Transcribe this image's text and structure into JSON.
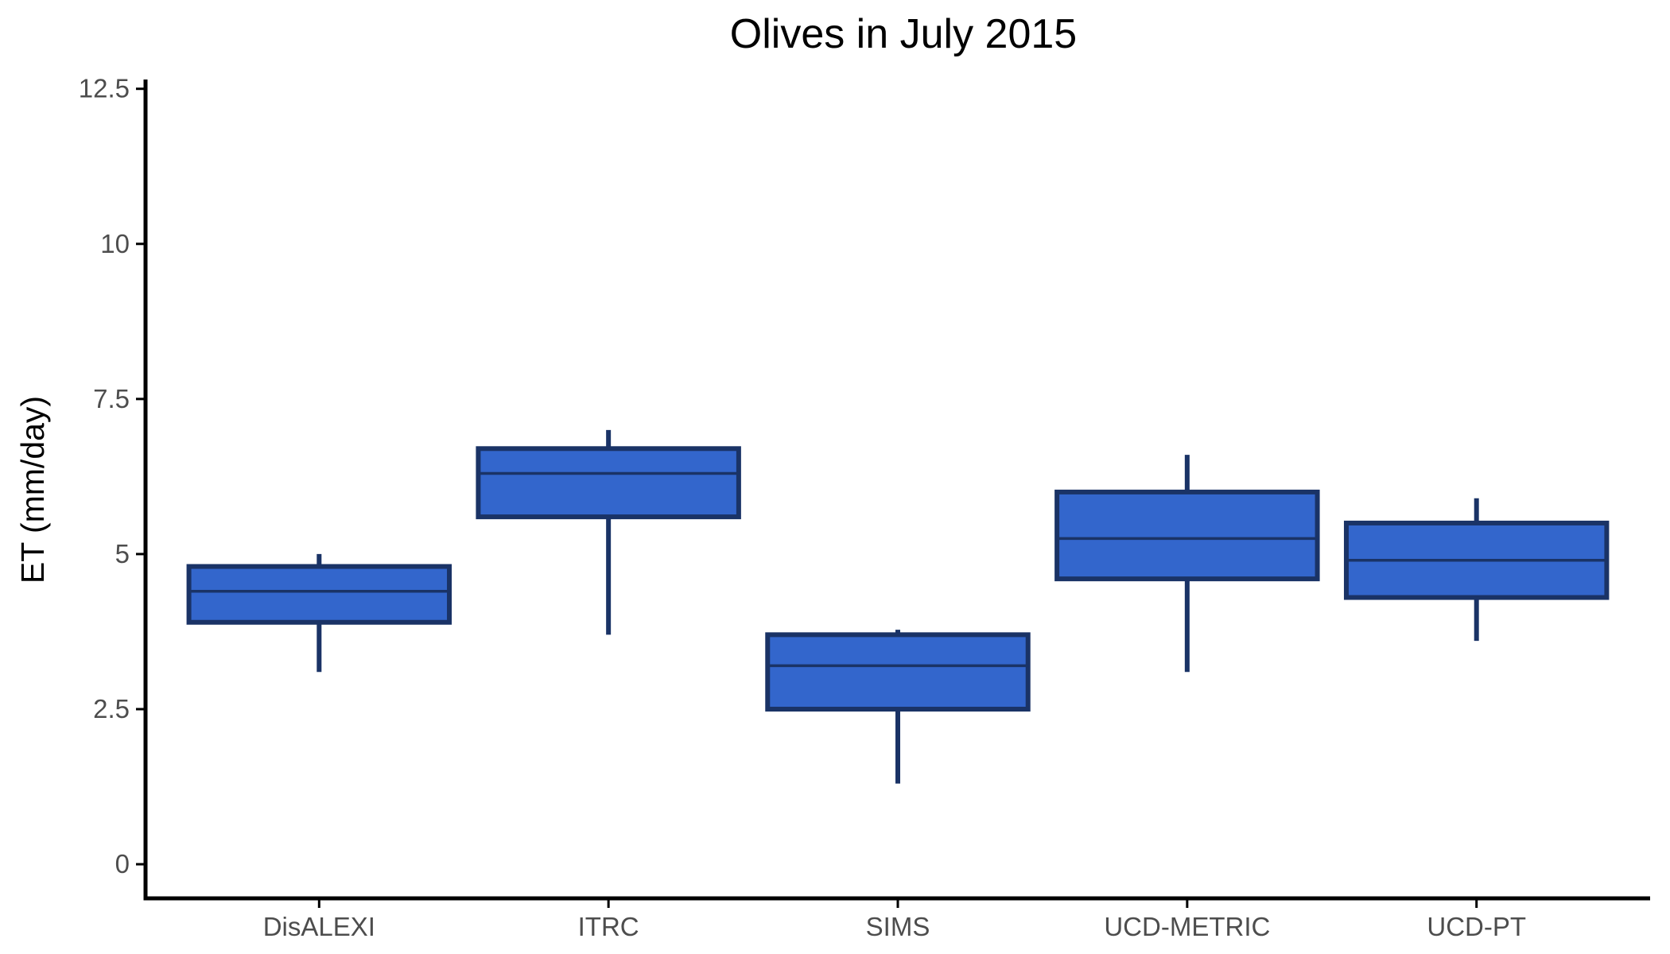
{
  "chart_data": {
    "type": "boxplot",
    "title": "Olives in July 2015",
    "xlabel": "",
    "ylabel": "ET (mm/day)",
    "ylim": [
      -0.55,
      12.65
    ],
    "yticks": [
      0,
      2.5,
      5,
      7.5,
      10,
      12.5
    ],
    "ytick_labels": [
      "0",
      "2.5",
      "5",
      "7.5",
      "10",
      "12.5"
    ],
    "categories": [
      "DisALEXI",
      "ITRC",
      "SIMS",
      "UCD-METRIC",
      "UCD-PT"
    ],
    "boxes": [
      {
        "category": "DisALEXI",
        "whisker_low": 3.1,
        "q1": 3.9,
        "median": 4.4,
        "q3": 4.8,
        "whisker_high": 5.0
      },
      {
        "category": "ITRC",
        "whisker_low": 3.7,
        "q1": 5.6,
        "median": 6.3,
        "q3": 6.7,
        "whisker_high": 7.0
      },
      {
        "category": "SIMS",
        "whisker_low": 1.3,
        "q1": 2.5,
        "median": 3.2,
        "q3": 3.7,
        "whisker_high": 3.78
      },
      {
        "category": "UCD-METRIC",
        "whisker_low": 3.1,
        "q1": 4.6,
        "median": 5.25,
        "q3": 6.0,
        "whisker_high": 6.6
      },
      {
        "category": "UCD-PT",
        "whisker_low": 3.6,
        "q1": 4.3,
        "median": 4.9,
        "q3": 5.5,
        "whisker_high": 5.9
      }
    ],
    "grid": false,
    "legend": "none",
    "colors": {
      "box_fill": "#3366cc",
      "box_outline": "#1a3366",
      "axis": "#000000",
      "tick_text": "#4d4d4d"
    }
  }
}
